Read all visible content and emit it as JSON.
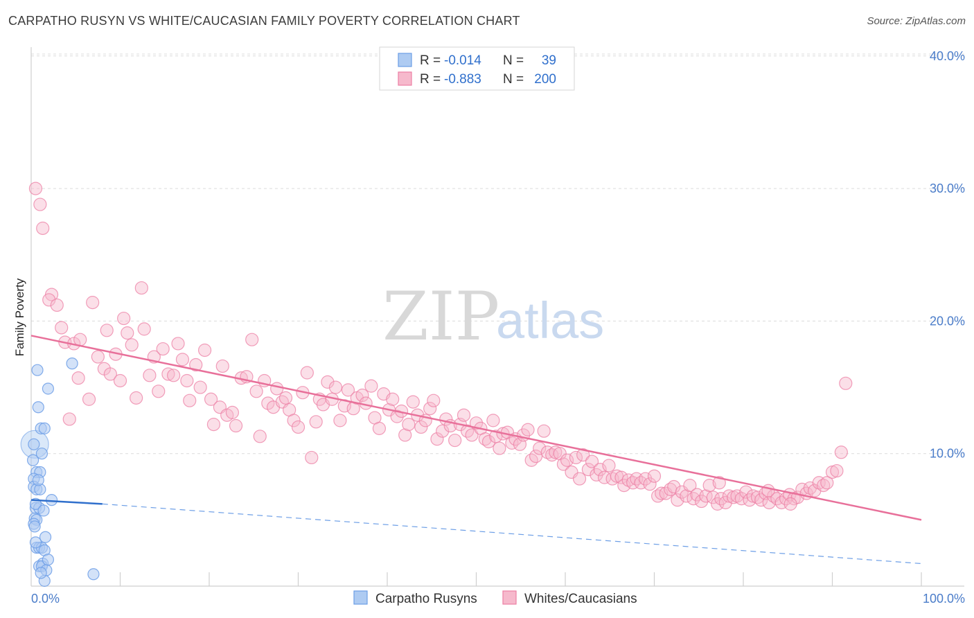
{
  "title": "CARPATHO RUSYN VS WHITE/CAUCASIAN FAMILY POVERTY CORRELATION CHART",
  "source": "Source: ZipAtlas.com",
  "watermark": {
    "zip": "ZIP",
    "atlas": "atlas"
  },
  "colors": {
    "blue": "#6c9ee6",
    "blue_fill": "#aecbf2",
    "pink": "#ec7fa4",
    "pink_fill": "#f6b9cc",
    "blue_line": "#2f6fcc",
    "pink_line": "#e8709a",
    "tick_text": "#4a7cc9"
  },
  "legend": {
    "r_label": "R =",
    "n_label": "N =",
    "rows": [
      {
        "r": "-0.014",
        "n": "39"
      },
      {
        "r": "-0.883",
        "n": "200"
      }
    ]
  },
  "chart_data": {
    "type": "scatter",
    "title": "CARPATHO RUSYN VS WHITE/CAUCASIAN FAMILY POVERTY CORRELATION CHART",
    "xlabel": "",
    "ylabel": "Family Poverty",
    "xlim": [
      0,
      100
    ],
    "ylim": [
      0,
      42
    ],
    "x_tick_labels": [
      "0.0%",
      "100.0%"
    ],
    "y_ticks": [
      10,
      20,
      30,
      40
    ],
    "y_tick_labels": [
      "10.0%",
      "20.0%",
      "30.0%",
      "40.0%"
    ],
    "grid": true,
    "series": [
      {
        "name": "Carpatho Rusyns",
        "color": "#6c9ee6",
        "trend": {
          "x0": 0,
          "y0": 6.5,
          "x1": 8.0,
          "y1": 6.2,
          "dash_to_x": 100,
          "dash_to_y": 1.7
        },
        "points": [
          [
            0.7,
            16.3
          ],
          [
            1.9,
            14.9
          ],
          [
            0.8,
            13.5
          ],
          [
            1.1,
            11.9
          ],
          [
            1.5,
            11.9
          ],
          [
            0.3,
            10.7
          ],
          [
            1.2,
            10.0
          ],
          [
            0.6,
            8.6
          ],
          [
            1.0,
            8.6
          ],
          [
            0.3,
            8.1
          ],
          [
            0.3,
            7.5
          ],
          [
            0.6,
            7.3
          ],
          [
            1.0,
            7.3
          ],
          [
            2.3,
            6.5
          ],
          [
            0.5,
            5.9
          ],
          [
            0.9,
            5.9
          ],
          [
            0.4,
            5.1
          ],
          [
            0.6,
            5.0
          ],
          [
            0.3,
            4.7
          ],
          [
            1.6,
            3.7
          ],
          [
            0.6,
            2.9
          ],
          [
            0.9,
            2.9
          ],
          [
            1.2,
            2.9
          ],
          [
            1.5,
            2.7
          ],
          [
            1.3,
            1.7
          ],
          [
            0.9,
            1.5
          ],
          [
            1.2,
            1.5
          ],
          [
            1.7,
            1.2
          ],
          [
            1.5,
            0.4
          ],
          [
            7.0,
            0.9
          ],
          [
            4.6,
            16.8
          ],
          [
            0.4,
            4.5
          ],
          [
            0.5,
            6.2
          ],
          [
            0.8,
            8.0
          ],
          [
            1.4,
            5.7
          ],
          [
            1.9,
            2.0
          ],
          [
            0.2,
            9.5
          ],
          [
            0.5,
            3.3
          ],
          [
            1.1,
            1.0
          ]
        ]
      },
      {
        "name": "Whites/Caucasians",
        "color": "#ec7fa4",
        "trend": {
          "x0": 0,
          "y0": 18.9,
          "x1": 100,
          "y1": 5.0
        },
        "points": [
          [
            0.5,
            30.0
          ],
          [
            1.0,
            28.8
          ],
          [
            1.3,
            27.0
          ],
          [
            2.3,
            22.0
          ],
          [
            2.0,
            21.6
          ],
          [
            2.9,
            21.2
          ],
          [
            3.4,
            19.5
          ],
          [
            3.8,
            18.4
          ],
          [
            4.8,
            18.3
          ],
          [
            5.5,
            18.6
          ],
          [
            4.3,
            12.6
          ],
          [
            5.3,
            15.7
          ],
          [
            6.5,
            14.1
          ],
          [
            6.9,
            21.4
          ],
          [
            7.5,
            17.3
          ],
          [
            8.2,
            16.4
          ],
          [
            8.5,
            19.3
          ],
          [
            8.9,
            16.0
          ],
          [
            9.5,
            17.5
          ],
          [
            10.0,
            15.5
          ],
          [
            10.4,
            20.2
          ],
          [
            10.8,
            19.1
          ],
          [
            11.3,
            18.2
          ],
          [
            11.8,
            14.2
          ],
          [
            12.4,
            22.5
          ],
          [
            12.7,
            19.4
          ],
          [
            13.3,
            15.9
          ],
          [
            13.8,
            17.3
          ],
          [
            14.3,
            14.7
          ],
          [
            14.8,
            17.9
          ],
          [
            15.4,
            16.0
          ],
          [
            16.0,
            15.9
          ],
          [
            16.5,
            18.3
          ],
          [
            17.0,
            17.1
          ],
          [
            17.5,
            15.5
          ],
          [
            17.8,
            14.0
          ],
          [
            18.5,
            16.7
          ],
          [
            19.0,
            15.0
          ],
          [
            19.5,
            17.8
          ],
          [
            20.2,
            14.1
          ],
          [
            20.5,
            12.2
          ],
          [
            21.2,
            13.5
          ],
          [
            21.5,
            16.6
          ],
          [
            22.0,
            12.9
          ],
          [
            22.6,
            13.1
          ],
          [
            23.0,
            12.1
          ],
          [
            23.6,
            15.7
          ],
          [
            24.2,
            15.8
          ],
          [
            24.8,
            18.6
          ],
          [
            25.3,
            14.7
          ],
          [
            25.7,
            11.3
          ],
          [
            26.2,
            15.5
          ],
          [
            26.6,
            13.8
          ],
          [
            27.2,
            13.5
          ],
          [
            27.6,
            14.9
          ],
          [
            28.2,
            13.9
          ],
          [
            28.6,
            14.2
          ],
          [
            29.0,
            13.3
          ],
          [
            29.5,
            12.5
          ],
          [
            30.0,
            12.0
          ],
          [
            30.5,
            14.6
          ],
          [
            31.0,
            16.1
          ],
          [
            31.5,
            9.7
          ],
          [
            32.0,
            12.4
          ],
          [
            32.4,
            14.1
          ],
          [
            32.8,
            13.7
          ],
          [
            33.3,
            15.4
          ],
          [
            33.8,
            14.1
          ],
          [
            34.2,
            15.0
          ],
          [
            34.7,
            12.5
          ],
          [
            35.2,
            13.6
          ],
          [
            35.6,
            14.8
          ],
          [
            36.2,
            13.4
          ],
          [
            36.6,
            14.2
          ],
          [
            37.2,
            14.4
          ],
          [
            37.6,
            13.8
          ],
          [
            38.2,
            15.1
          ],
          [
            38.6,
            12.7
          ],
          [
            39.1,
            11.9
          ],
          [
            39.6,
            14.5
          ],
          [
            40.2,
            13.3
          ],
          [
            40.6,
            14.1
          ],
          [
            41.1,
            12.8
          ],
          [
            41.6,
            13.2
          ],
          [
            42.0,
            11.4
          ],
          [
            42.4,
            12.2
          ],
          [
            42.9,
            13.9
          ],
          [
            43.4,
            12.9
          ],
          [
            43.8,
            12.0
          ],
          [
            44.3,
            12.5
          ],
          [
            44.8,
            13.4
          ],
          [
            45.2,
            14.0
          ],
          [
            45.6,
            11.1
          ],
          [
            46.2,
            11.7
          ],
          [
            46.6,
            12.6
          ],
          [
            47.1,
            12.1
          ],
          [
            47.6,
            11.0
          ],
          [
            48.2,
            12.2
          ],
          [
            48.6,
            12.9
          ],
          [
            49.0,
            11.7
          ],
          [
            49.5,
            11.4
          ],
          [
            50.0,
            12.3
          ],
          [
            50.5,
            11.9
          ],
          [
            51.0,
            11.1
          ],
          [
            51.4,
            10.9
          ],
          [
            51.9,
            12.5
          ],
          [
            52.2,
            11.3
          ],
          [
            52.6,
            10.4
          ],
          [
            53.0,
            11.5
          ],
          [
            53.5,
            11.6
          ],
          [
            54.0,
            10.8
          ],
          [
            54.4,
            11.1
          ],
          [
            54.9,
            10.7
          ],
          [
            55.3,
            11.4
          ],
          [
            55.8,
            11.8
          ],
          [
            56.2,
            9.5
          ],
          [
            56.7,
            9.8
          ],
          [
            57.1,
            10.4
          ],
          [
            57.6,
            11.7
          ],
          [
            58.0,
            10.1
          ],
          [
            58.5,
            9.9
          ],
          [
            58.9,
            10.1
          ],
          [
            59.4,
            10.0
          ],
          [
            59.8,
            9.2
          ],
          [
            60.2,
            9.5
          ],
          [
            60.7,
            8.6
          ],
          [
            61.2,
            9.7
          ],
          [
            61.6,
            8.1
          ],
          [
            62.0,
            9.9
          ],
          [
            62.6,
            8.8
          ],
          [
            63.0,
            9.4
          ],
          [
            63.5,
            8.4
          ],
          [
            63.9,
            8.8
          ],
          [
            64.4,
            8.2
          ],
          [
            64.9,
            9.1
          ],
          [
            65.3,
            8.1
          ],
          [
            65.8,
            8.3
          ],
          [
            66.3,
            8.2
          ],
          [
            66.6,
            7.6
          ],
          [
            67.1,
            8.0
          ],
          [
            67.6,
            7.8
          ],
          [
            68.0,
            8.1
          ],
          [
            68.5,
            7.8
          ],
          [
            69.0,
            8.1
          ],
          [
            69.5,
            7.7
          ],
          [
            70.0,
            8.3
          ],
          [
            70.4,
            6.8
          ],
          [
            70.8,
            7.0
          ],
          [
            71.3,
            7.0
          ],
          [
            71.8,
            7.3
          ],
          [
            72.2,
            7.5
          ],
          [
            72.6,
            6.5
          ],
          [
            73.1,
            7.1
          ],
          [
            73.6,
            6.8
          ],
          [
            74.0,
            7.6
          ],
          [
            74.4,
            6.6
          ],
          [
            74.8,
            6.9
          ],
          [
            75.3,
            6.4
          ],
          [
            75.8,
            6.8
          ],
          [
            76.2,
            7.6
          ],
          [
            76.6,
            6.7
          ],
          [
            77.1,
            6.2
          ],
          [
            77.5,
            6.6
          ],
          [
            78.0,
            6.3
          ],
          [
            78.4,
            6.8
          ],
          [
            78.9,
            6.7
          ],
          [
            79.3,
            6.8
          ],
          [
            79.8,
            6.6
          ],
          [
            80.3,
            7.1
          ],
          [
            80.7,
            6.5
          ],
          [
            81.1,
            6.8
          ],
          [
            81.6,
            6.7
          ],
          [
            82.0,
            6.5
          ],
          [
            82.5,
            7.0
          ],
          [
            82.9,
            6.3
          ],
          [
            83.4,
            6.8
          ],
          [
            83.8,
            6.6
          ],
          [
            84.3,
            6.3
          ],
          [
            84.8,
            6.6
          ],
          [
            85.2,
            6.9
          ],
          [
            85.7,
            6.6
          ],
          [
            86.1,
            6.7
          ],
          [
            86.6,
            7.3
          ],
          [
            87.1,
            7.0
          ],
          [
            87.5,
            7.4
          ],
          [
            88.0,
            7.2
          ],
          [
            88.5,
            7.8
          ],
          [
            89.0,
            7.6
          ],
          [
            89.4,
            7.8
          ],
          [
            90.0,
            8.6
          ],
          [
            90.5,
            8.7
          ],
          [
            91.0,
            10.1
          ],
          [
            91.5,
            15.3
          ],
          [
            85.3,
            6.2
          ],
          [
            77.3,
            7.8
          ],
          [
            82.8,
            7.2
          ]
        ]
      }
    ]
  },
  "bottom_legend": [
    {
      "label": "Carpatho Rusyns"
    },
    {
      "label": "Whites/Caucasians"
    }
  ]
}
